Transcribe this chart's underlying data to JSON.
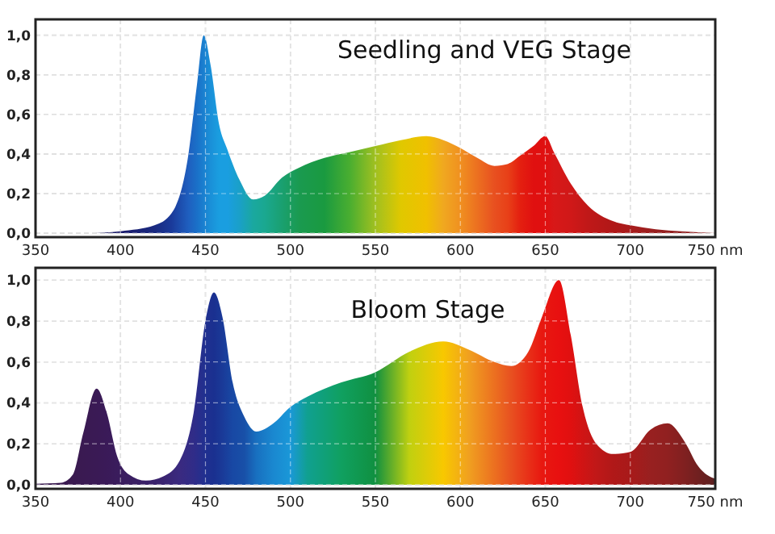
{
  "chart_data": [
    {
      "type": "area",
      "title": "Seedling and VEG Stage",
      "x": [
        350,
        380,
        400,
        420,
        430,
        440,
        445,
        449,
        453,
        458,
        463,
        470,
        478,
        485,
        495,
        505,
        520,
        535,
        550,
        565,
        580,
        590,
        600,
        610,
        620,
        628,
        635,
        643,
        650,
        655,
        665,
        675,
        690,
        700,
        715,
        730,
        750
      ],
      "values": [
        0,
        0,
        0.01,
        0.04,
        0.1,
        0.4,
        0.75,
        1.0,
        0.85,
        0.55,
        0.42,
        0.27,
        0.17,
        0.19,
        0.28,
        0.33,
        0.38,
        0.41,
        0.44,
        0.47,
        0.49,
        0.47,
        0.43,
        0.38,
        0.34,
        0.35,
        0.39,
        0.44,
        0.49,
        0.41,
        0.25,
        0.14,
        0.06,
        0.04,
        0.02,
        0.01,
        0
      ],
      "colors": [
        "#1a1a5a",
        "#1a1a5a",
        "#1a1a6a",
        "#1a2a80",
        "#1a3a9a",
        "#1f5fbf",
        "#1a70c8",
        "#1a80d0",
        "#1a90d8",
        "#1a9ee0",
        "#1a9ee0",
        "#1aa0c8",
        "#1aa8a0",
        "#1aa890",
        "#1aa070",
        "#1a9a50",
        "#1a9a40",
        "#4aae30",
        "#a0c020",
        "#e0c800",
        "#f0c000",
        "#f0a820",
        "#f09020",
        "#ec7020",
        "#e85020",
        "#e84018",
        "#e42010",
        "#e01010",
        "#e01010",
        "#d81818",
        "#d01818",
        "#c01818",
        "#b01818",
        "#a81c1c",
        "#982020",
        "#902020",
        "#902020"
      ],
      "xlim": [
        350,
        750
      ],
      "ylim": [
        -0.02,
        1.08
      ],
      "xticks": [
        350,
        400,
        450,
        500,
        550,
        600,
        650,
        700,
        {
          "value": 750,
          "label": "750 nm"
        }
      ],
      "yticks": [
        {
          "value": 0,
          "label": "0,0"
        },
        {
          "value": 0.2,
          "label": "0,2"
        },
        {
          "value": 0.4,
          "label": "0,4"
        },
        {
          "value": 0.6,
          "label": "0,6"
        },
        {
          "value": 0.8,
          "label": "0,8"
        },
        {
          "value": 1,
          "label": "1,0"
        }
      ],
      "grid": true,
      "line_style": "dashed"
    },
    {
      "type": "area",
      "title": "Bloom Stage",
      "x": [
        350,
        365,
        372,
        378,
        386,
        392,
        398,
        405,
        415,
        425,
        435,
        443,
        450,
        455,
        460,
        466,
        473,
        480,
        490,
        500,
        510,
        530,
        550,
        570,
        590,
        605,
        620,
        630,
        640,
        648,
        658,
        665,
        672,
        680,
        690,
        700,
        712,
        722,
        732,
        740,
        748,
        750
      ],
      "values": [
        0.005,
        0.01,
        0.05,
        0.25,
        0.47,
        0.35,
        0.14,
        0.05,
        0.02,
        0.04,
        0.12,
        0.35,
        0.8,
        0.94,
        0.82,
        0.5,
        0.33,
        0.26,
        0.3,
        0.38,
        0.43,
        0.5,
        0.55,
        0.65,
        0.7,
        0.66,
        0.6,
        0.58,
        0.65,
        0.82,
        1.0,
        0.73,
        0.38,
        0.2,
        0.15,
        0.16,
        0.27,
        0.3,
        0.21,
        0.09,
        0.035,
        0.03
      ],
      "colors": [
        "#3a1a50",
        "#3a1a50",
        "#3a1a50",
        "#3a1a52",
        "#3a1a55",
        "#3a1a58",
        "#3a1c5c",
        "#3a1e60",
        "#3a2068",
        "#3a2470",
        "#3a2a80",
        "#302c88",
        "#203090",
        "#1a3090",
        "#1a3a98",
        "#1848a4",
        "#1850a8",
        "#1870c0",
        "#1a88d0",
        "#1a98d8",
        "#10a090",
        "#10a060",
        "#109040",
        "#c0d010",
        "#f8c800",
        "#f0a020",
        "#ec7020",
        "#e85020",
        "#e83018",
        "#e81810",
        "#e81010",
        "#e01010",
        "#d01414",
        "#c01818",
        "#b01818",
        "#a81a1a",
        "#982020",
        "#902020",
        "#802020",
        "#702020",
        "#602020",
        "#502020"
      ],
      "xlim": [
        350,
        750
      ],
      "ylim": [
        -0.02,
        1.06
      ],
      "xticks": [
        350,
        400,
        450,
        500,
        550,
        600,
        650,
        700,
        {
          "value": 750,
          "label": "750 nm"
        }
      ],
      "yticks": [
        {
          "value": 0,
          "label": "0,0"
        },
        {
          "value": 0.2,
          "label": "0,2"
        },
        {
          "value": 0.4,
          "label": "0,4"
        },
        {
          "value": 0.6,
          "label": "0,6"
        },
        {
          "value": 0.8,
          "label": "0,8"
        },
        {
          "value": 1,
          "label": "1,0"
        }
      ],
      "grid": true,
      "line_style": "dashed"
    }
  ]
}
